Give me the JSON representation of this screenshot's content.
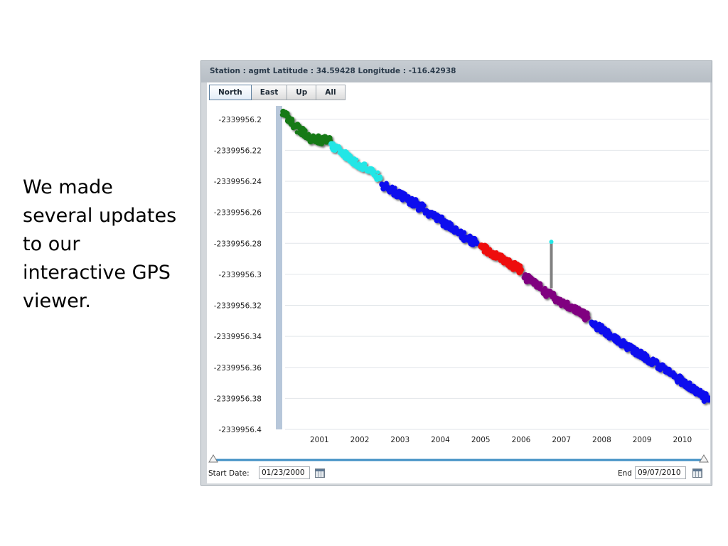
{
  "slide": {
    "text_lines": [
      "We made",
      "several updates",
      "to our",
      "interactive GPS",
      "viewer."
    ]
  },
  "viewer": {
    "station_info": "Station : agmt Latitude : 34.59428 Longitude : -116.42938",
    "tabs": [
      {
        "label": "North",
        "active": true
      },
      {
        "label": "East",
        "active": false
      },
      {
        "label": "Up",
        "active": false
      },
      {
        "label": "All",
        "active": false
      }
    ],
    "start_date_label": "Start Date:",
    "start_date_value": "01/23/2000",
    "end_date_label": "End",
    "end_date_value": "09/07/2010",
    "icons": [
      "calendar-icon",
      "slider-handle-icon"
    ]
  },
  "chart_data": {
    "type": "scatter",
    "title": "",
    "xlabel": "",
    "ylabel": "",
    "x_ticks": [
      "2001",
      "2002",
      "2003",
      "2004",
      "2005",
      "2006",
      "2007",
      "2008",
      "2009",
      "2010"
    ],
    "y_ticks": [
      "-2339956.2",
      "-2339956.22",
      "-2339956.24",
      "-2339956.26",
      "-2339956.28",
      "-2339956.3",
      "-2339956.32",
      "-2339956.34",
      "-2339956.36",
      "-2339956.38",
      "-2339956.4"
    ],
    "xlim": [
      2000.06,
      2010.69
    ],
    "ylim": [
      -2339956.4,
      -2339956.19
    ],
    "grid": true,
    "series": [
      {
        "color": "#157a15",
        "x": [
          2000.1,
          2000.3,
          2000.55,
          2000.8,
          2001.05,
          2001.25
        ],
        "y": [
          -2339956.195,
          -2339956.202,
          -2339956.208,
          -2339956.212,
          -2339956.214,
          -2339956.212
        ]
      },
      {
        "color": "#22e6e6",
        "x": [
          2001.3,
          2001.55,
          2001.8,
          2002.05,
          2002.3,
          2002.5
        ],
        "y": [
          -2339956.216,
          -2339956.222,
          -2339956.226,
          -2339956.23,
          -2339956.234,
          -2339956.238
        ]
      },
      {
        "color": "#1010ee",
        "x": [
          2002.55,
          2002.9,
          2003.3,
          2003.7,
          2004.1,
          2004.5,
          2004.9
        ],
        "y": [
          -2339956.242,
          -2339956.247,
          -2339956.253,
          -2339956.26,
          -2339956.267,
          -2339956.274,
          -2339956.28
        ]
      },
      {
        "color": "#ee1111",
        "x": [
          2005.0,
          2005.25,
          2005.5,
          2005.75,
          2006.0
        ],
        "y": [
          -2339956.282,
          -2339956.286,
          -2339956.29,
          -2339956.294,
          -2339956.297
        ]
      },
      {
        "color": "#800080",
        "x": [
          2006.1,
          2006.4,
          2006.7,
          2007.0,
          2007.3,
          2007.65
        ],
        "y": [
          -2339956.301,
          -2339956.307,
          -2339956.313,
          -2339956.318,
          -2339956.322,
          -2339956.328
        ]
      },
      {
        "color": "#1010ee",
        "x": [
          2007.75,
          2008.1,
          2008.5,
          2008.9,
          2009.3,
          2009.7,
          2010.1,
          2010.4,
          2010.65
        ],
        "y": [
          -2339956.331,
          -2339956.337,
          -2339956.344,
          -2339956.351,
          -2339956.357,
          -2339956.364,
          -2339956.371,
          -2339956.376,
          -2339956.381
        ]
      }
    ],
    "outlier": {
      "x": 2006.75,
      "y_top": -2339956.279,
      "y_bottom": -2339956.309,
      "color": "#22e6e6"
    },
    "colors": {
      "grid": "#e2e6ea",
      "range_bar": "#b7c7da",
      "slider_track": "#3f8fc4"
    }
  }
}
